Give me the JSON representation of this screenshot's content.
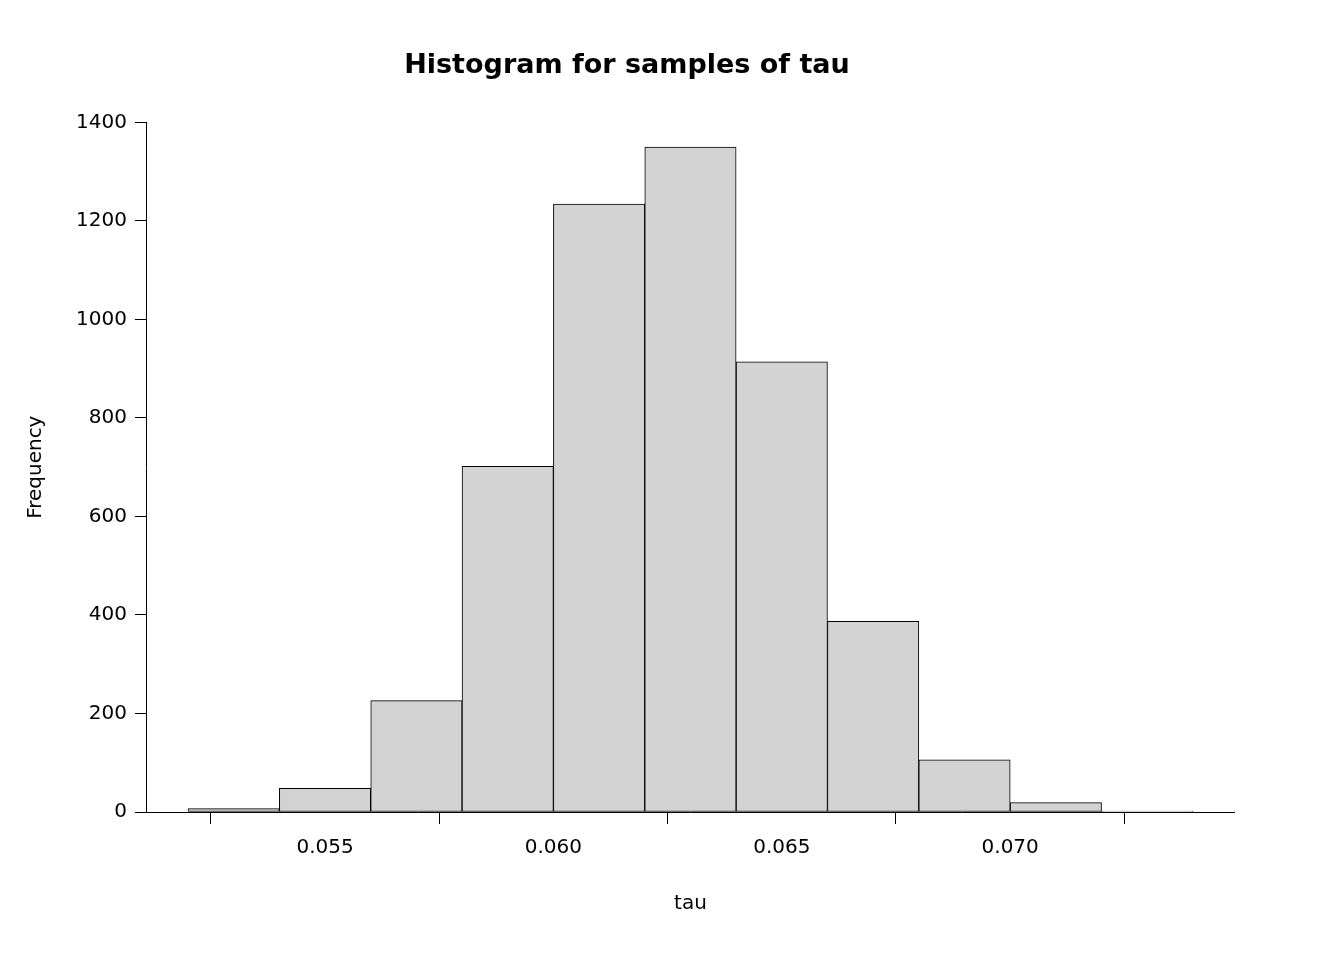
{
  "chart_data": {
    "type": "histogram",
    "title": "Histogram for samples of tau",
    "x_label": "tau",
    "y_label": "Frequency",
    "bins": [
      0.052,
      0.054,
      0.056,
      0.058,
      0.06,
      0.062,
      0.064,
      0.066,
      0.068,
      0.07,
      0.072,
      0.074
    ],
    "counts": [
      7,
      48,
      226,
      702,
      1234,
      1350,
      914,
      387,
      106,
      19,
      2
    ],
    "color": "#d3d3d3",
    "xlim": [
      0.0511,
      0.0749
    ],
    "ylim": [
      0,
      1400
    ],
    "xticks": [
      0.055,
      {
        "value": 0.06,
        "label": "0.060"
      },
      0.065,
      {
        "value": 0.07,
        "label": "0.070"
      }
    ],
    "yticks": [
      0,
      200,
      400,
      600,
      800,
      1000,
      1200,
      1400
    ],
    "grid": false
  }
}
